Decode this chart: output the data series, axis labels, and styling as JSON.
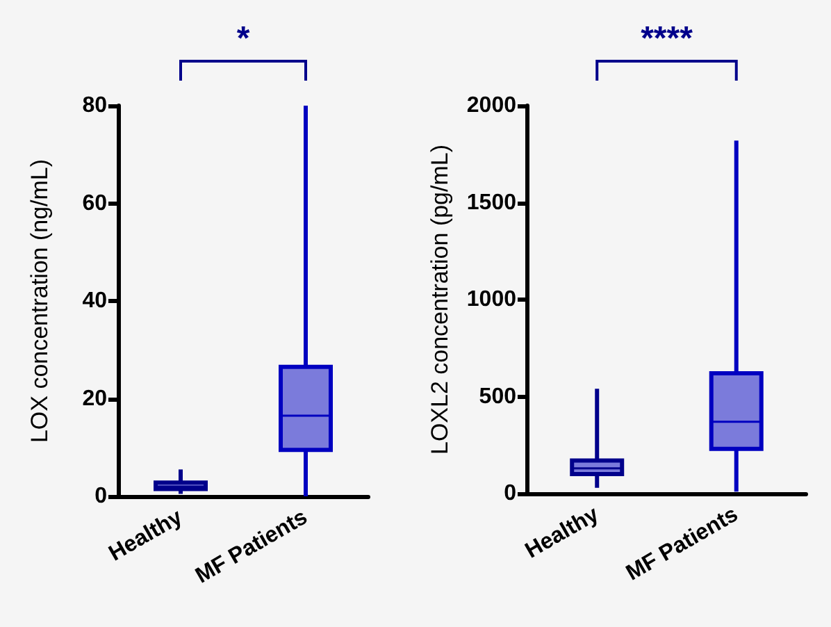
{
  "chart_data": [
    {
      "type": "box",
      "ylabel": "LOX concentration (ng/mL)",
      "categories": [
        "Healthy",
        "MF Patients"
      ],
      "boxes": [
        {
          "low": 0.5,
          "q1": 1.5,
          "median": 2,
          "q3": 2.8,
          "high": 5.5
        },
        {
          "low": 0,
          "q1": 9.5,
          "median": 16.5,
          "q3": 26.5,
          "high": 80
        }
      ],
      "colors": [
        "#00008b",
        "#0000c0"
      ],
      "ylim": [
        0,
        80
      ],
      "yticks": [
        0,
        20,
        40,
        60,
        80
      ],
      "grid": false,
      "annotations": [
        "*"
      ]
    },
    {
      "type": "box",
      "ylabel": "LOXL2 concentration (pg/mL)",
      "categories": [
        "Healthy",
        "MF Patients"
      ],
      "boxes": [
        {
          "low": 30,
          "q1": 100,
          "median": 130,
          "q3": 170,
          "high": 540
        },
        {
          "low": 10,
          "q1": 230,
          "median": 370,
          "q3": 620,
          "high": 1820
        }
      ],
      "colors": [
        "#00008b",
        "#0000c0"
      ],
      "ylim": [
        0,
        2000
      ],
      "yticks": [
        0,
        500,
        1000,
        1500,
        2000
      ],
      "grid": false,
      "annotations": [
        "****"
      ]
    }
  ]
}
